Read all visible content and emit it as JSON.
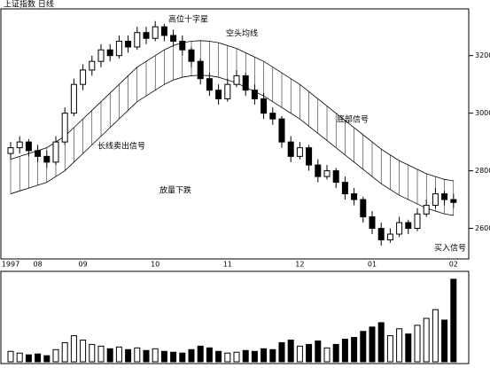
{
  "chart_data": {
    "type": "candlestick",
    "title": "上证指数 日线",
    "annotations": [
      "高位十字星",
      "空头均线",
      "长线卖出信号",
      "放量下跌",
      "底部信号",
      "买入信号"
    ],
    "date_labels": [
      "1997",
      "08",
      "09",
      "10",
      "11",
      "12",
      "01",
      "02"
    ],
    "date_label_index": [
      0,
      3,
      8,
      16,
      24,
      32,
      40,
      49
    ],
    "ohlc": [
      [
        2860,
        2900,
        2840,
        2880
      ],
      [
        2880,
        2920,
        2860,
        2900
      ],
      [
        2900,
        2910,
        2850,
        2870
      ],
      [
        2870,
        2890,
        2830,
        2850
      ],
      [
        2850,
        2870,
        2810,
        2830
      ],
      [
        2830,
        2920,
        2820,
        2900
      ],
      [
        2900,
        3020,
        2890,
        3000
      ],
      [
        3000,
        3120,
        2990,
        3100
      ],
      [
        3100,
        3170,
        3080,
        3150
      ],
      [
        3150,
        3200,
        3130,
        3180
      ],
      [
        3180,
        3240,
        3160,
        3220
      ],
      [
        3220,
        3240,
        3180,
        3200
      ],
      [
        3200,
        3270,
        3190,
        3250
      ],
      [
        3250,
        3270,
        3210,
        3230
      ],
      [
        3230,
        3300,
        3220,
        3280
      ],
      [
        3280,
        3300,
        3240,
        3260
      ],
      [
        3260,
        3320,
        3250,
        3300
      ],
      [
        3300,
        3310,
        3250,
        3270
      ],
      [
        3270,
        3290,
        3230,
        3250
      ],
      [
        3250,
        3270,
        3200,
        3220
      ],
      [
        3220,
        3230,
        3160,
        3180
      ],
      [
        3180,
        3190,
        3100,
        3120
      ],
      [
        3120,
        3140,
        3060,
        3080
      ],
      [
        3080,
        3100,
        3030,
        3050
      ],
      [
        3050,
        3120,
        3040,
        3100
      ],
      [
        3100,
        3150,
        3090,
        3130
      ],
      [
        3130,
        3140,
        3060,
        3080
      ],
      [
        3080,
        3100,
        3030,
        3050
      ],
      [
        3050,
        3070,
        2980,
        3000
      ],
      [
        3000,
        3020,
        2960,
        2980
      ],
      [
        2980,
        2990,
        2880,
        2900
      ],
      [
        2900,
        2920,
        2830,
        2850
      ],
      [
        2850,
        2900,
        2840,
        2880
      ],
      [
        2880,
        2890,
        2800,
        2820
      ],
      [
        2820,
        2840,
        2760,
        2780
      ],
      [
        2780,
        2820,
        2770,
        2800
      ],
      [
        2800,
        2810,
        2740,
        2760
      ],
      [
        2760,
        2780,
        2700,
        2720
      ],
      [
        2720,
        2740,
        2680,
        2700
      ],
      [
        2700,
        2710,
        2620,
        2640
      ],
      [
        2640,
        2660,
        2580,
        2600
      ],
      [
        2600,
        2620,
        2540,
        2560
      ],
      [
        2560,
        2600,
        2550,
        2580
      ],
      [
        2580,
        2640,
        2570,
        2620
      ],
      [
        2620,
        2630,
        2580,
        2600
      ],
      [
        2600,
        2670,
        2590,
        2650
      ],
      [
        2650,
        2700,
        2640,
        2680
      ],
      [
        2680,
        2740,
        2670,
        2720
      ],
      [
        2720,
        2730,
        2680,
        2700
      ],
      [
        2700,
        2720,
        2670,
        2690
      ]
    ],
    "bands": [
      {
        "color": "#000000",
        "values": [
          2840,
          2850,
          2860,
          2870,
          2880,
          2900,
          2920,
          2950,
          2980,
          3010,
          3040,
          3070,
          3100,
          3130,
          3160,
          3180,
          3200,
          3220,
          3235,
          3245,
          3250,
          3252,
          3250,
          3245,
          3235,
          3225,
          3210,
          3195,
          3180,
          3160,
          3140,
          3120,
          3100,
          3075,
          3050,
          3025,
          3000,
          2975,
          2950,
          2925,
          2900,
          2875,
          2855,
          2835,
          2820,
          2805,
          2790,
          2780,
          2770,
          2765
        ]
      },
      {
        "color": "#000000",
        "values": [
          2720,
          2730,
          2740,
          2750,
          2760,
          2780,
          2800,
          2830,
          2860,
          2890,
          2920,
          2950,
          2980,
          3010,
          3040,
          3060,
          3080,
          3100,
          3115,
          3125,
          3130,
          3132,
          3130,
          3125,
          3115,
          3105,
          3090,
          3075,
          3060,
          3040,
          3020,
          3000,
          2980,
          2955,
          2930,
          2905,
          2880,
          2855,
          2830,
          2805,
          2780,
          2755,
          2735,
          2715,
          2700,
          2685,
          2670,
          2660,
          2650,
          2645
        ]
      }
    ],
    "volume": [
      12,
      10,
      8,
      9,
      7,
      14,
      22,
      30,
      25,
      20,
      18,
      15,
      17,
      14,
      16,
      13,
      15,
      12,
      11,
      10,
      14,
      18,
      16,
      12,
      10,
      11,
      13,
      12,
      15,
      14,
      22,
      25,
      18,
      20,
      24,
      16,
      20,
      26,
      28,
      35,
      40,
      45,
      30,
      38,
      32,
      42,
      50,
      60,
      48,
      95
    ],
    "ylim": [
      2500,
      3350
    ],
    "yticks": [
      2600,
      2800,
      3000,
      3200
    ],
    "vlim": [
      0,
      100
    ]
  }
}
